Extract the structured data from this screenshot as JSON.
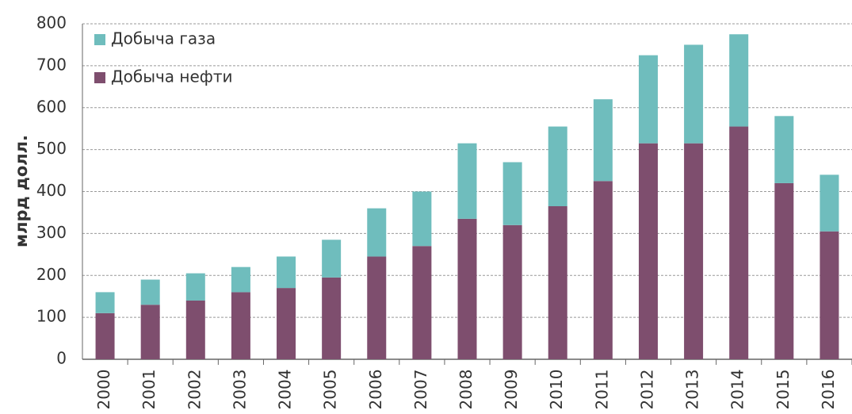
{
  "chart_data": {
    "type": "stacked_bar",
    "y_label": "млрд долл.",
    "categories": [
      "2000",
      "2001",
      "2002",
      "2003",
      "2004",
      "2005",
      "2006",
      "2007",
      "2008",
      "2009",
      "2010",
      "2011",
      "2012",
      "2013",
      "2014",
      "2015",
      "2016"
    ],
    "series": [
      {
        "name": "Добыча нефти",
        "color": "#7e4e6e",
        "values": [
          110,
          130,
          140,
          160,
          170,
          195,
          245,
          270,
          335,
          320,
          365,
          425,
          515,
          515,
          555,
          420,
          305
        ]
      },
      {
        "name": "Добыча газа",
        "color": "#6fbdbd",
        "values": [
          50,
          60,
          65,
          60,
          75,
          90,
          115,
          130,
          180,
          150,
          190,
          195,
          210,
          235,
          220,
          160,
          135
        ]
      }
    ],
    "ylim": [
      0,
      800
    ],
    "yticks": [
      0,
      100,
      200,
      300,
      400,
      500,
      600,
      700,
      800
    ],
    "grid": true,
    "legend": "top-left"
  }
}
